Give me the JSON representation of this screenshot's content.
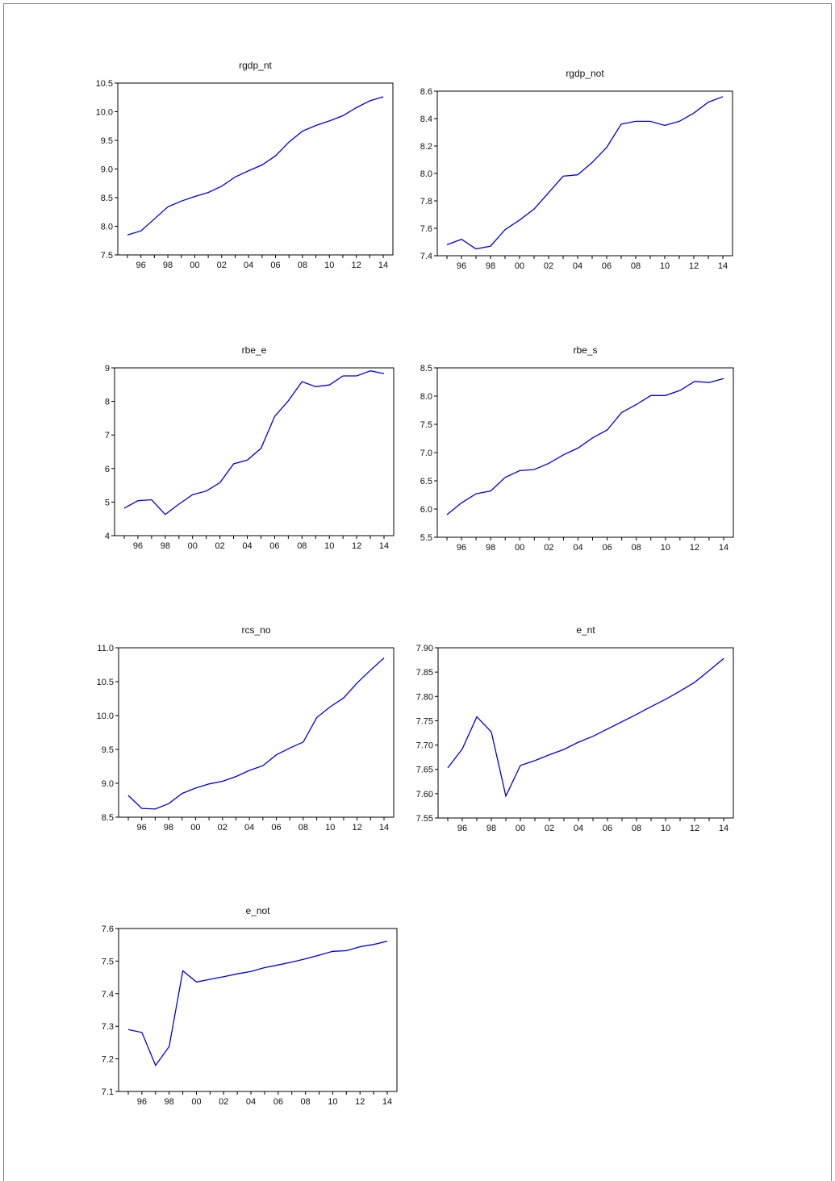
{
  "chart_data": [
    {
      "type": "line",
      "title": "rgdp_nt",
      "x": [
        1995,
        1996,
        1997,
        1998,
        1999,
        2000,
        2001,
        2002,
        2003,
        2004,
        2005,
        2006,
        2007,
        2008,
        2009,
        2010,
        2011,
        2012,
        2013,
        2014
      ],
      "xticks": [
        "96",
        "98",
        "00",
        "02",
        "04",
        "06",
        "08",
        "10",
        "12",
        "14"
      ],
      "yticks": [
        "7.5",
        "8.0",
        "8.5",
        "9.0",
        "9.5",
        "10.0",
        "10.5"
      ],
      "ylim": [
        7.5,
        10.5
      ],
      "series": [
        {
          "values": [
            7.85,
            7.92,
            8.13,
            8.34,
            8.44,
            8.52,
            8.59,
            8.7,
            8.86,
            8.97,
            9.07,
            9.23,
            9.47,
            9.66,
            9.76,
            9.84,
            9.93,
            10.07,
            10.19,
            10.26
          ]
        }
      ],
      "line_color": "#0000e0"
    },
    {
      "type": "line",
      "title": "rgdp_not",
      "x": [
        1995,
        1996,
        1997,
        1998,
        1999,
        2000,
        2001,
        2002,
        2003,
        2004,
        2005,
        2006,
        2007,
        2008,
        2009,
        2010,
        2011,
        2012,
        2013,
        2014
      ],
      "xticks": [
        "96",
        "98",
        "00",
        "02",
        "04",
        "06",
        "08",
        "10",
        "12",
        "14"
      ],
      "yticks": [
        "7.4",
        "7.6",
        "7.8",
        "8.0",
        "8.2",
        "8.4",
        "8.6"
      ],
      "ylim": [
        7.4,
        8.6
      ],
      "series": [
        {
          "values": [
            7.48,
            7.52,
            7.45,
            7.47,
            7.59,
            7.66,
            7.74,
            7.86,
            7.98,
            7.99,
            8.08,
            8.19,
            8.36,
            8.38,
            8.38,
            8.35,
            8.38,
            8.44,
            8.52,
            8.56
          ]
        }
      ],
      "line_color": "#0000e0"
    },
    {
      "type": "line",
      "title": "rbe_e",
      "x": [
        1995,
        1996,
        1997,
        1998,
        1999,
        2000,
        2001,
        2002,
        2003,
        2004,
        2005,
        2006,
        2007,
        2008,
        2009,
        2010,
        2011,
        2012,
        2013,
        2014
      ],
      "xticks": [
        "96",
        "98",
        "00",
        "02",
        "04",
        "06",
        "08",
        "10",
        "12",
        "14"
      ],
      "yticks": [
        "4",
        "5",
        "6",
        "7",
        "8",
        "9"
      ],
      "ylim": [
        4,
        9
      ],
      "series": [
        {
          "values": [
            4.82,
            5.04,
            5.07,
            4.63,
            4.94,
            5.22,
            5.33,
            5.58,
            6.14,
            6.25,
            6.6,
            7.55,
            8.02,
            8.59,
            8.44,
            8.49,
            8.76,
            8.76,
            8.91,
            8.83
          ]
        }
      ],
      "line_color": "#0000e0"
    },
    {
      "type": "line",
      "title": "rbe_s",
      "x": [
        1995,
        1996,
        1997,
        1998,
        1999,
        2000,
        2001,
        2002,
        2003,
        2004,
        2005,
        2006,
        2007,
        2008,
        2009,
        2010,
        2011,
        2012,
        2013,
        2014
      ],
      "xticks": [
        "96",
        "98",
        "00",
        "02",
        "04",
        "06",
        "08",
        "10",
        "12",
        "14"
      ],
      "yticks": [
        "5.5",
        "6.0",
        "6.5",
        "7.0",
        "7.5",
        "8.0",
        "8.5"
      ],
      "ylim": [
        5.5,
        8.5
      ],
      "series": [
        {
          "values": [
            5.9,
            6.11,
            6.27,
            6.32,
            6.56,
            6.68,
            6.7,
            6.81,
            6.96,
            7.08,
            7.26,
            7.4,
            7.71,
            7.85,
            8.01,
            8.01,
            8.1,
            8.26,
            8.24,
            8.31
          ]
        }
      ],
      "line_color": "#0000e0"
    },
    {
      "type": "line",
      "title": "rcs_no",
      "x": [
        1995,
        1996,
        1997,
        1998,
        1999,
        2000,
        2001,
        2002,
        2003,
        2004,
        2005,
        2006,
        2007,
        2008,
        2009,
        2010,
        2011,
        2012,
        2013,
        2014
      ],
      "xticks": [
        "96",
        "98",
        "00",
        "02",
        "04",
        "06",
        "08",
        "10",
        "12",
        "14"
      ],
      "yticks": [
        "8.5",
        "9.0",
        "9.5",
        "10.0",
        "10.5",
        "11.0"
      ],
      "ylim": [
        8.5,
        11.0
      ],
      "series": [
        {
          "values": [
            8.82,
            8.63,
            8.62,
            8.7,
            8.85,
            8.93,
            8.99,
            9.03,
            9.1,
            9.19,
            9.26,
            9.42,
            9.52,
            9.61,
            9.97,
            10.13,
            10.26,
            10.48,
            10.67,
            10.85
          ]
        }
      ],
      "line_color": "#0000e0"
    },
    {
      "type": "line",
      "title": "e_nt",
      "x": [
        1995,
        1996,
        1997,
        1998,
        1999,
        2000,
        2001,
        2002,
        2003,
        2004,
        2005,
        2006,
        2007,
        2008,
        2009,
        2010,
        2011,
        2012,
        2013,
        2014
      ],
      "xticks": [
        "96",
        "98",
        "00",
        "02",
        "04",
        "06",
        "08",
        "10",
        "12",
        "14"
      ],
      "yticks": [
        "7.55",
        "7.60",
        "7.65",
        "7.70",
        "7.75",
        "7.80",
        "7.85",
        "7.90"
      ],
      "ylim": [
        7.55,
        7.9
      ],
      "series": [
        {
          "values": [
            7.653,
            7.692,
            7.758,
            7.727,
            7.595,
            7.658,
            7.668,
            7.68,
            7.691,
            7.706,
            7.718,
            7.733,
            7.748,
            7.763,
            7.779,
            7.794,
            7.811,
            7.829,
            7.853,
            7.878
          ]
        }
      ],
      "line_color": "#0000e0"
    },
    {
      "type": "line",
      "title": "e_not",
      "x": [
        1995,
        1996,
        1997,
        1998,
        1999,
        2000,
        2001,
        2002,
        2003,
        2004,
        2005,
        2006,
        2007,
        2008,
        2009,
        2010,
        2011,
        2012,
        2013,
        2014
      ],
      "xticks": [
        "96",
        "98",
        "00",
        "02",
        "04",
        "06",
        "08",
        "10",
        "12",
        "14"
      ],
      "yticks": [
        "7.1",
        "7.2",
        "7.3",
        "7.4",
        "7.5",
        "7.6"
      ],
      "ylim": [
        7.1,
        7.6
      ],
      "series": [
        {
          "values": [
            7.29,
            7.281,
            7.18,
            7.238,
            7.47,
            7.436,
            7.444,
            7.452,
            7.461,
            7.468,
            7.48,
            7.488,
            7.497,
            7.507,
            7.518,
            7.53,
            7.532,
            7.544,
            7.551,
            7.561
          ]
        }
      ],
      "line_color": "#0000e0"
    }
  ]
}
